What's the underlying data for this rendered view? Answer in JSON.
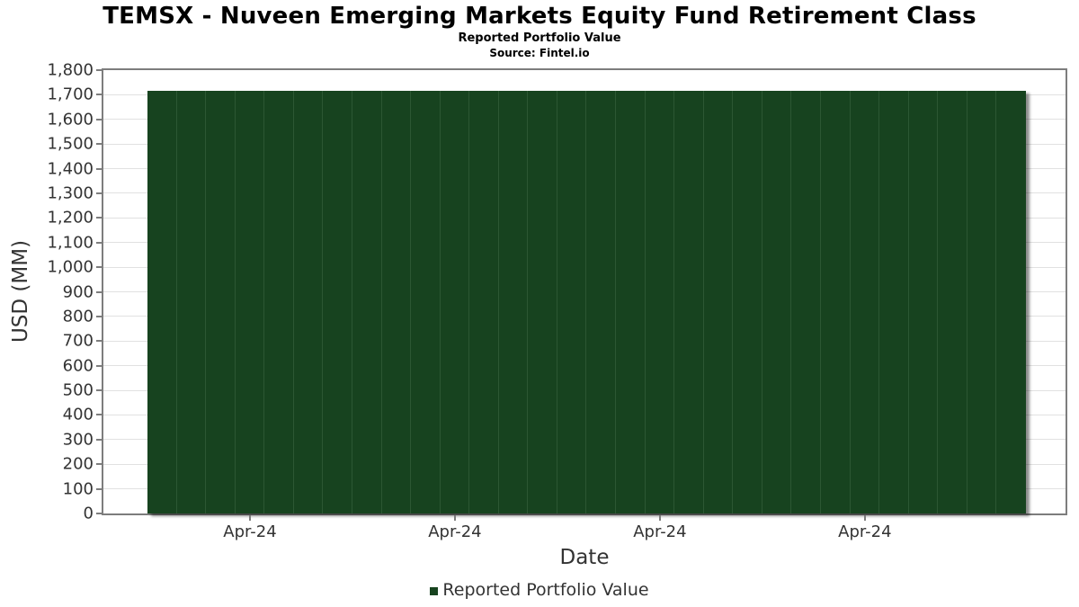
{
  "header": {
    "title": "TEMSX - Nuveen Emerging Markets Equity Fund Retirement Class",
    "subtitle": "Reported Portfolio Value",
    "source": "Source: Fintel.io"
  },
  "chart_data": {
    "type": "bar",
    "title": "TEMSX - Nuveen Emerging Markets Equity Fund Retirement Class",
    "subtitle": "Reported Portfolio Value",
    "source": "Source: Fintel.io",
    "xlabel": "Date",
    "ylabel": "USD (MM)",
    "ylim": [
      0,
      1800
    ],
    "ytick_step": 100,
    "ytick_values": [
      1800,
      1700,
      1600,
      1500,
      1400,
      1300,
      1200,
      1100,
      1000,
      900,
      800,
      700,
      600,
      500,
      400,
      300,
      200,
      100,
      0
    ],
    "ytick_labels": [
      "1,800",
      "1,700",
      "1,600",
      "1,500",
      "1,400",
      "1,300",
      "1,200",
      "1,100",
      "1,000",
      "900",
      "800",
      "700",
      "600",
      "500",
      "400",
      "300",
      "200",
      "100",
      "0"
    ],
    "xtick_labels": [
      "Apr-24",
      "Apr-24",
      "Apr-24",
      "Apr-24"
    ],
    "xtick_bar_indices": [
      3,
      10,
      17,
      24
    ],
    "bar_count": 30,
    "values": [
      1716,
      1716,
      1716,
      1716,
      1716,
      1716,
      1716,
      1716,
      1716,
      1716,
      1716,
      1716,
      1716,
      1716,
      1716,
      1716,
      1716,
      1716,
      1716,
      1716,
      1716,
      1716,
      1716,
      1716,
      1716,
      1716,
      1716,
      1716,
      1716,
      1716
    ],
    "grid": "horizontal",
    "legend": {
      "label": "Reported Portfolio Value",
      "position": "bottom-center"
    },
    "colors": {
      "bar": "#17431f",
      "bar_separator": "#2c5733",
      "bar_shadow": "rgba(0,0,0,0.45)",
      "grid": "#e1e1e1",
      "plot_border": "#7d7d7d",
      "axis_text": "#333333",
      "title_text": "#000000"
    }
  }
}
